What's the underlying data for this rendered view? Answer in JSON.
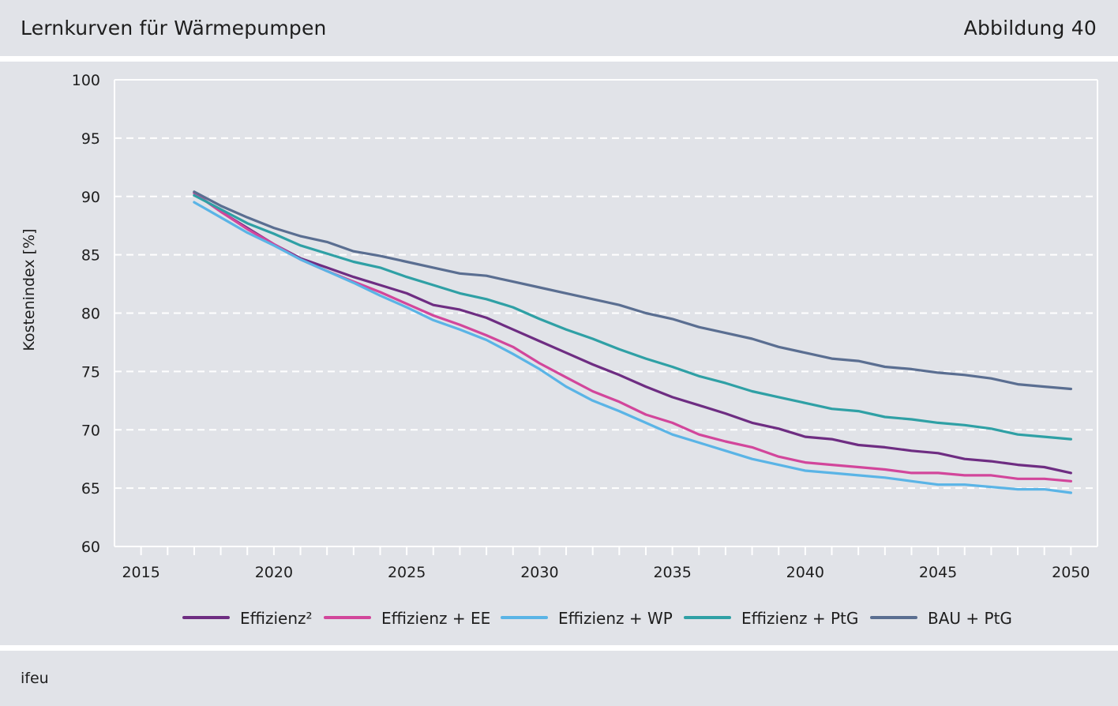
{
  "header": {
    "title": "Lernkurven für Wärmepumpen",
    "figure_label": "Abbildung 40"
  },
  "footer": {
    "source": "ifeu"
  },
  "colors": {
    "panel_background": "#e1e3e8",
    "plot_background": "#ffffff",
    "gridline": "#ffffff",
    "axis": "#ffffff",
    "text": "#1e1e1e"
  },
  "chart_data": {
    "type": "line",
    "title": "Lernkurven für Wärmepumpen",
    "xlabel": "",
    "ylabel": "Kostenindex [%]",
    "xlim": [
      2014,
      2051
    ],
    "ylim": [
      60,
      100
    ],
    "x_ticks": [
      2015,
      2020,
      2025,
      2030,
      2035,
      2040,
      2045,
      2050
    ],
    "y_ticks": [
      60,
      65,
      70,
      75,
      80,
      85,
      90,
      95,
      100
    ],
    "grid": "horizontal dashed",
    "legend_position": "bottom",
    "x": [
      2017,
      2018,
      2019,
      2020,
      2021,
      2022,
      2023,
      2024,
      2025,
      2026,
      2027,
      2028,
      2029,
      2030,
      2031,
      2032,
      2033,
      2034,
      2035,
      2036,
      2037,
      2038,
      2039,
      2040,
      2041,
      2042,
      2043,
      2044,
      2045,
      2046,
      2047,
      2048,
      2049,
      2050
    ],
    "series": [
      {
        "name": "Effizienz²",
        "color": "#6e2d82",
        "values": [
          90.3,
          88.7,
          87.3,
          85.9,
          84.7,
          83.9,
          83.1,
          82.4,
          81.7,
          80.7,
          80.3,
          79.6,
          78.6,
          77.6,
          76.6,
          75.6,
          74.7,
          73.7,
          72.8,
          72.1,
          71.4,
          70.6,
          70.1,
          69.4,
          69.2,
          68.7,
          68.5,
          68.2,
          68.0,
          67.5,
          67.3,
          67.0,
          66.8,
          66.3
        ]
      },
      {
        "name": "Effizienz + EE",
        "color": "#d2469b",
        "values": [
          90.3,
          88.7,
          87.2,
          85.9,
          84.6,
          83.6,
          82.7,
          81.8,
          80.8,
          79.8,
          79.0,
          78.1,
          77.1,
          75.7,
          74.5,
          73.3,
          72.4,
          71.3,
          70.6,
          69.6,
          69.0,
          68.5,
          67.7,
          67.2,
          67.0,
          66.8,
          66.6,
          66.3,
          66.3,
          66.1,
          66.1,
          65.8,
          65.8,
          65.6
        ]
      },
      {
        "name": "Effizienz + WP",
        "color": "#5ab4e6",
        "values": [
          89.5,
          88.2,
          86.9,
          85.8,
          84.6,
          83.6,
          82.6,
          81.5,
          80.5,
          79.4,
          78.6,
          77.7,
          76.5,
          75.2,
          73.7,
          72.5,
          71.6,
          70.6,
          69.6,
          68.9,
          68.2,
          67.5,
          67.0,
          66.5,
          66.3,
          66.1,
          65.9,
          65.6,
          65.3,
          65.3,
          65.1,
          64.9,
          64.9,
          64.6
        ]
      },
      {
        "name": "Effizienz + PtG",
        "color": "#2fa0a5",
        "values": [
          90.1,
          88.9,
          87.7,
          86.8,
          85.8,
          85.1,
          84.4,
          83.9,
          83.1,
          82.4,
          81.7,
          81.2,
          80.5,
          79.5,
          78.6,
          77.8,
          76.9,
          76.1,
          75.4,
          74.6,
          74.0,
          73.3,
          72.8,
          72.3,
          71.8,
          71.6,
          71.1,
          70.9,
          70.6,
          70.4,
          70.1,
          69.6,
          69.4,
          69.2
        ]
      },
      {
        "name": "BAU + PtG",
        "color": "#5a6e91",
        "values": [
          90.4,
          89.2,
          88.2,
          87.3,
          86.6,
          86.1,
          85.3,
          84.9,
          84.4,
          83.9,
          83.4,
          83.2,
          82.7,
          82.2,
          81.7,
          81.2,
          80.7,
          80.0,
          79.5,
          78.8,
          78.3,
          77.8,
          77.1,
          76.6,
          76.1,
          75.9,
          75.4,
          75.2,
          74.9,
          74.7,
          74.4,
          73.9,
          73.7,
          73.5
        ]
      }
    ]
  }
}
